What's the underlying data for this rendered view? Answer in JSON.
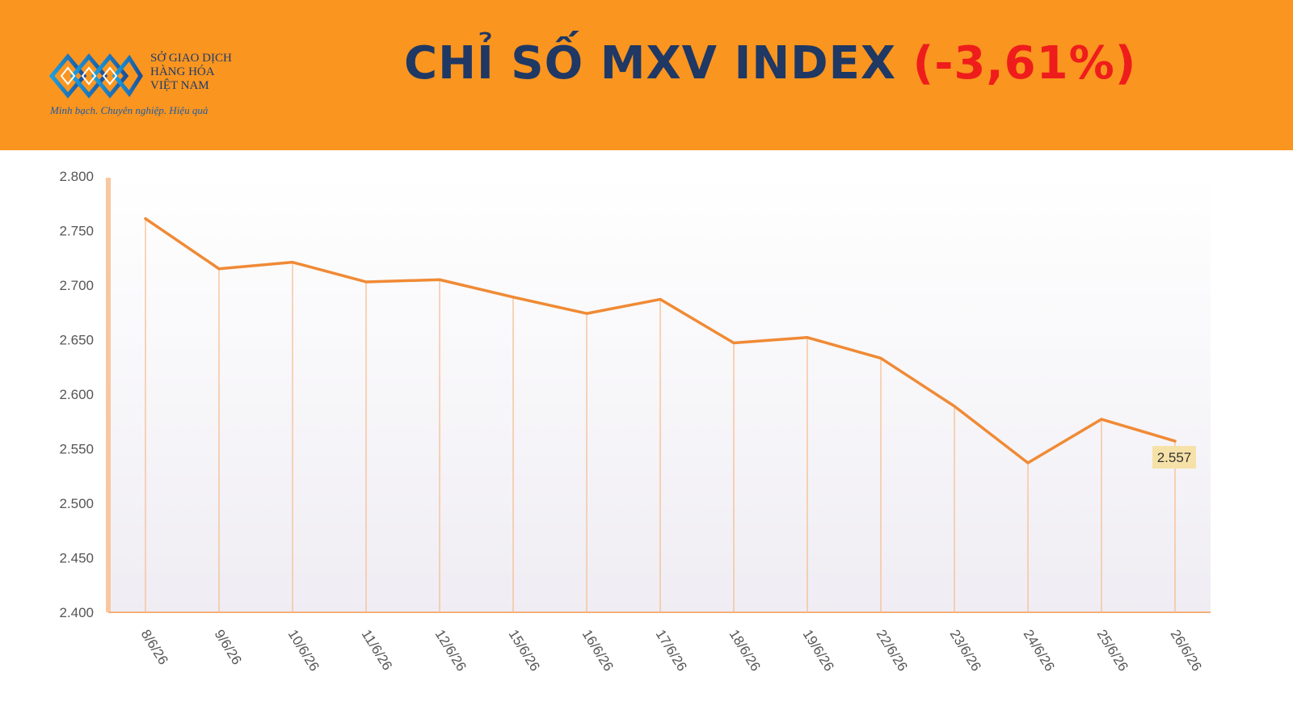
{
  "header": {
    "org_name": "SỞ GIAO DỊCH\nHÀNG HÓA\nVIỆT NAM",
    "slogan": "Minh bạch. Chuyên nghiệp. Hiệu quả",
    "title_main": "CHỈ SỐ MXV INDEX ",
    "title_change": "(-3,61%)"
  },
  "colors": {
    "header_bg": "#fa951f",
    "line": "#f08a35",
    "drop_line": "#f7b98a",
    "title": "#1f3864",
    "change": "#ef1c1c",
    "value_badge": "#f6e2a8"
  },
  "chart_data": {
    "type": "line",
    "title": "CHỈ SỐ MXV INDEX (-3,61%)",
    "categories": [
      "8/6/26",
      "9/6/26",
      "10/6/26",
      "11/6/26",
      "12/6/26",
      "15/6/26",
      "16/6/26",
      "17/6/26",
      "18/6/26",
      "19/6/26",
      "22/6/26",
      "23/6/26",
      "24/6/26",
      "25/6/26",
      "26/6/26"
    ],
    "values": [
      2761,
      2715,
      2721,
      2703,
      2705,
      2689,
      2674,
      2687,
      2647,
      2652,
      2633,
      2589,
      2537,
      2577,
      2557
    ],
    "ylim": [
      2400,
      2800
    ],
    "yticks": [
      "2.800",
      "2.750",
      "2.700",
      "2.650",
      "2.600",
      "2.550",
      "2.500",
      "2.450",
      "2.400"
    ],
    "ytick_values": [
      2800,
      2750,
      2700,
      2650,
      2600,
      2550,
      2500,
      2450,
      2400
    ],
    "last_value_label": "2.557",
    "grid": false
  }
}
